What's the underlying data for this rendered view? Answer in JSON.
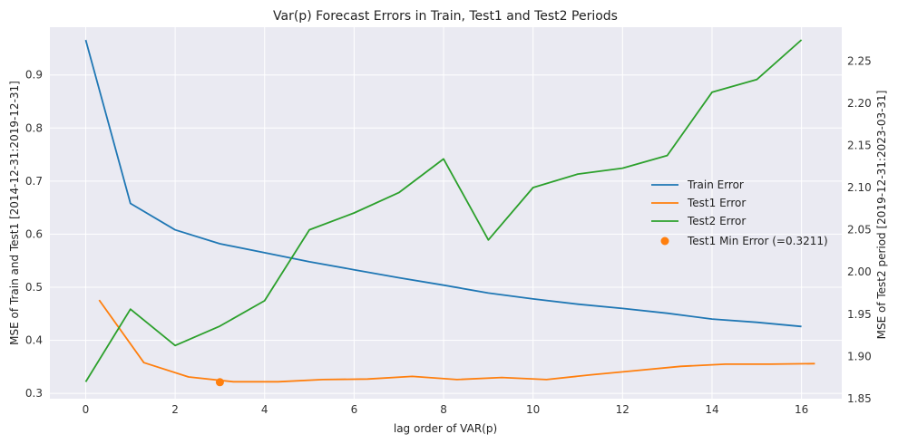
{
  "chart_data": {
    "type": "line",
    "title": "Var(p) Forecast Errors in Train, Test1 and Test2 Periods",
    "xlabel": "lag order of VAR(p)",
    "ylabel_left": "MSE of Train and Test1 [2014-12-31:2019-12-31]",
    "ylabel_right": "MSE of Test2 period [2019-12-31:2023-03-31]",
    "x_ticks": [
      "0",
      "2",
      "4",
      "6",
      "8",
      "10",
      "12",
      "14",
      "16"
    ],
    "y_left_ticks": [
      "0.3",
      "0.4",
      "0.5",
      "0.6",
      "0.7",
      "0.8",
      "0.9"
    ],
    "y_right_ticks": [
      "1.85",
      "1.90",
      "1.95",
      "2.00",
      "2.05",
      "2.10",
      "2.15",
      "2.20",
      "2.25"
    ],
    "xlim": [
      -0.8,
      16.9
    ],
    "ylim_left": [
      0.29,
      0.99
    ],
    "ylim_right": [
      1.85,
      2.29
    ],
    "grid": true,
    "legend_position": "center-right",
    "background": "#eaeaf2",
    "series": [
      {
        "name": "Train Error",
        "axis": "left",
        "color": "#1f77b4",
        "x": [
          0,
          1,
          2,
          3,
          4,
          5,
          6,
          7,
          8,
          9,
          10,
          11,
          12,
          13,
          14,
          15,
          16
        ],
        "y": [
          0.966,
          0.658,
          0.608,
          0.582,
          0.565,
          0.548,
          0.533,
          0.518,
          0.504,
          0.489,
          0.478,
          0.468,
          0.46,
          0.451,
          0.44,
          0.434,
          0.426
        ]
      },
      {
        "name": "Test1 Error",
        "axis": "left",
        "color": "#ff7f0e",
        "x": [
          0.3,
          1.3,
          2.3,
          3.3,
          4.3,
          5.3,
          6.3,
          7.3,
          8.3,
          9.3,
          10.3,
          11.3,
          12.3,
          13.3,
          14.3,
          15.3,
          16.3
        ],
        "y": [
          0.476,
          0.358,
          0.331,
          0.322,
          0.322,
          0.326,
          0.327,
          0.332,
          0.326,
          0.33,
          0.326,
          0.335,
          0.343,
          0.351,
          0.355,
          0.355,
          0.356
        ]
      },
      {
        "name": "Test2 Error",
        "axis": "right",
        "color": "#2ca02c",
        "x": [
          0,
          1,
          2,
          3,
          4,
          5,
          6,
          7,
          8,
          9,
          10,
          11,
          12,
          13,
          14,
          15,
          16
        ],
        "y": [
          1.87,
          1.956,
          1.913,
          1.936,
          1.966,
          2.05,
          2.07,
          2.094,
          2.134,
          2.038,
          2.1,
          2.116,
          2.123,
          2.138,
          2.213,
          2.228,
          2.275
        ]
      }
    ],
    "min_point": {
      "name": "Test1 Min Error (=0.3211)",
      "x": 3,
      "y": 0.3211,
      "color": "#ff7f0e"
    }
  }
}
